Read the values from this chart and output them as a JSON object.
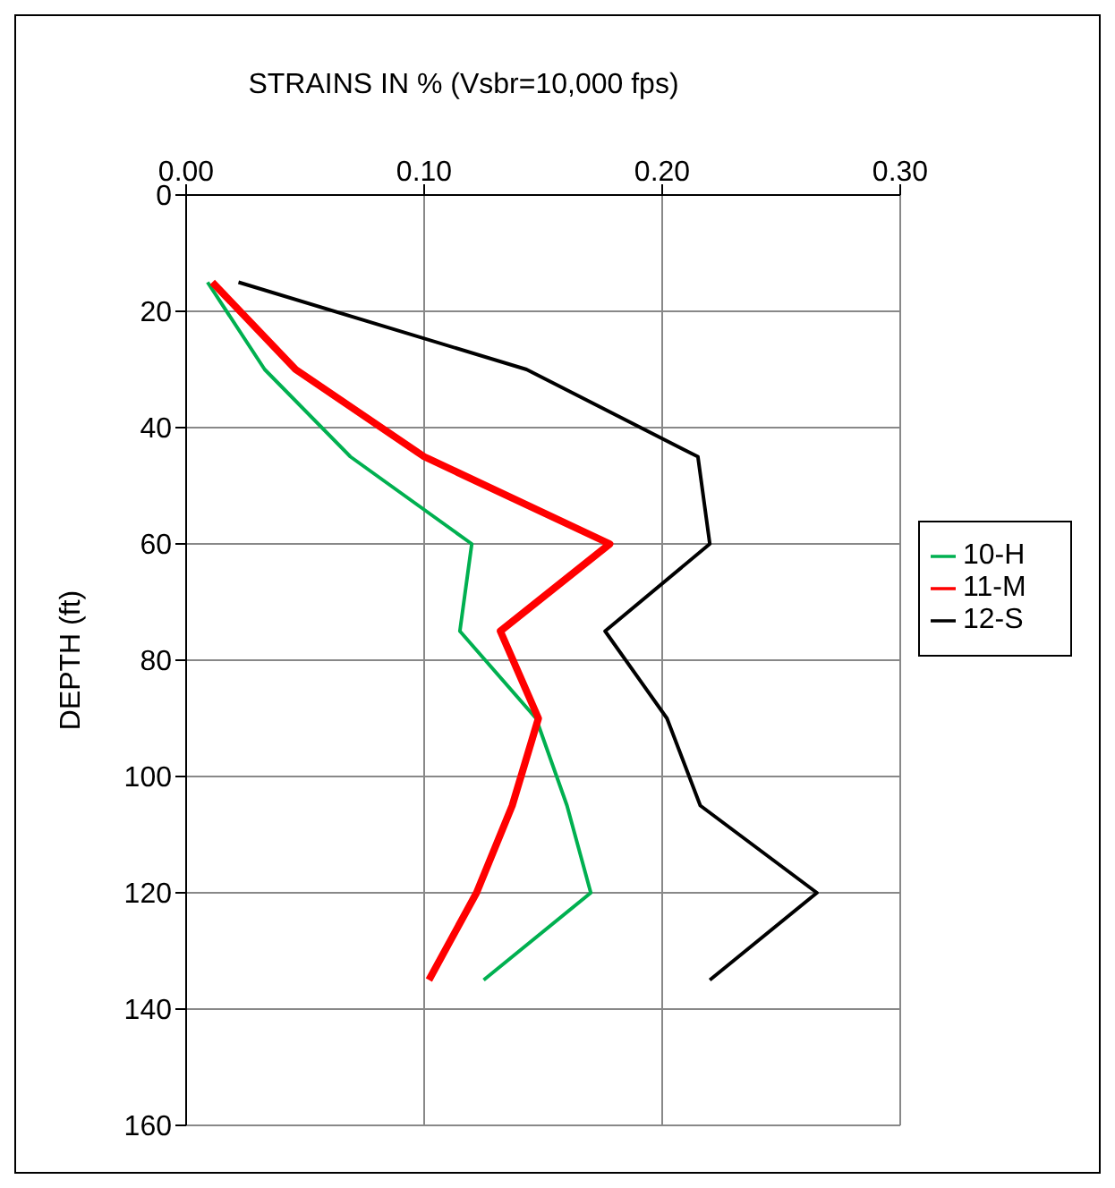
{
  "chart_data": {
    "type": "line",
    "title": "STRAINS IN %  (Vsbr=10,000 fps)",
    "ylabel": "DEPTH (ft)",
    "xlim": [
      0,
      0.3
    ],
    "xticks": [
      {
        "value": 0,
        "label": "0.00"
      },
      {
        "value": 0.1,
        "label": "0.10"
      },
      {
        "value": 0.2,
        "label": "0.20"
      },
      {
        "value": 0.3,
        "label": "0.30"
      }
    ],
    "ylim": [
      160,
      0
    ],
    "yticks": [
      0,
      20,
      40,
      60,
      80,
      100,
      120,
      140,
      160
    ],
    "grid": true,
    "legend": "right",
    "marker": "none",
    "series": [
      {
        "name": "10-H",
        "color": "#00b050",
        "x": [
          0.009,
          0.033,
          0.069,
          0.12,
          0.115,
          0.147,
          0.16,
          0.17,
          0.125
        ],
        "values": [
          15,
          30,
          45,
          60,
          75,
          90,
          105,
          120,
          135
        ]
      },
      {
        "name": "11-M",
        "color": "#ff0000",
        "x": [
          0.011,
          0.046,
          0.1,
          0.178,
          0.132,
          0.148,
          0.137,
          0.122,
          0.102
        ],
        "values": [
          15,
          30,
          45,
          60,
          75,
          90,
          105,
          120,
          135
        ]
      },
      {
        "name": "12-S",
        "color": "#000000",
        "x": [
          0.022,
          0.143,
          0.215,
          0.22,
          0.176,
          0.202,
          0.216,
          0.265,
          0.22
        ],
        "values": [
          15,
          30,
          45,
          60,
          75,
          90,
          105,
          120,
          135
        ]
      }
    ]
  }
}
